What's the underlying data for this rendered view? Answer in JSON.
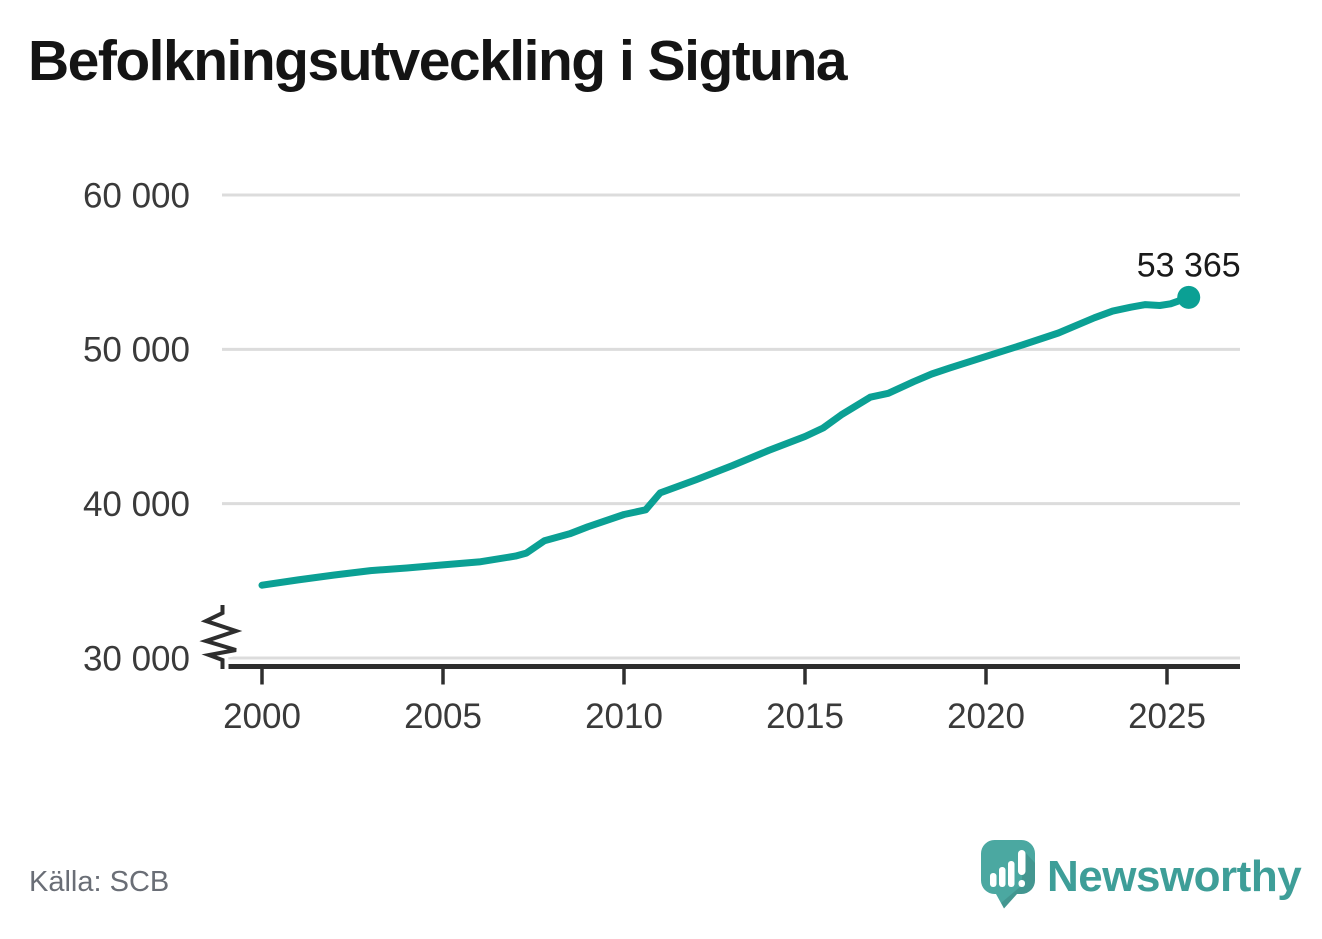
{
  "page": {
    "title": "Befolkningsutveckling i Sigtuna",
    "source": "Källa: SCB",
    "brand": {
      "name": "Newsworthy",
      "icon": "newsworthy-logo-icon"
    }
  },
  "colors": {
    "line": "#0ba094",
    "grid": "#dcdcdc",
    "axis": "#2e2e2e",
    "tick_text": "#3a3a3a",
    "title_text": "#141414",
    "end_label_text": "#1a1a1a",
    "source_text": "#6a6e76",
    "brand_teal": "#3e9e98",
    "logo_bubble_teal": "#4ba8a1",
    "background": "#ffffff"
  },
  "chart_data": {
    "type": "line",
    "title": "Befolkningsutveckling i Sigtuna",
    "xlabel": "",
    "ylabel": "",
    "grid": "horizontal",
    "legend": "none",
    "y_axis_break": true,
    "xlim": [
      1998.9,
      2026.9
    ],
    "ylim": [
      30000,
      60000
    ],
    "x_ticks": [
      {
        "value": 2000,
        "label": "2000"
      },
      {
        "value": 2005,
        "label": "2005"
      },
      {
        "value": 2010,
        "label": "2010"
      },
      {
        "value": 2015,
        "label": "2015"
      },
      {
        "value": 2020,
        "label": "2020"
      },
      {
        "value": 2025,
        "label": "2025"
      }
    ],
    "y_ticks": [
      {
        "value": 30000,
        "label": "30 000"
      },
      {
        "value": 40000,
        "label": "40 000"
      },
      {
        "value": 50000,
        "label": "50 000"
      },
      {
        "value": 60000,
        "label": "60 000"
      }
    ],
    "series": [
      {
        "color": "#0ba094",
        "points": [
          [
            2000,
            34720
          ],
          [
            2001,
            35060
          ],
          [
            2002,
            35380
          ],
          [
            2003,
            35660
          ],
          [
            2004,
            35830
          ],
          [
            2005,
            36030
          ],
          [
            2006,
            36230
          ],
          [
            2007,
            36600
          ],
          [
            2007.3,
            36800
          ],
          [
            2007.8,
            37600
          ],
          [
            2008.5,
            38050
          ],
          [
            2009,
            38500
          ],
          [
            2010,
            39300
          ],
          [
            2010.6,
            39600
          ],
          [
            2011,
            40700
          ],
          [
            2012,
            41560
          ],
          [
            2013,
            42470
          ],
          [
            2014,
            43450
          ],
          [
            2015,
            44350
          ],
          [
            2015.5,
            44900
          ],
          [
            2016,
            45750
          ],
          [
            2016.8,
            46900
          ],
          [
            2017.3,
            47150
          ],
          [
            2018,
            47900
          ],
          [
            2018.5,
            48400
          ],
          [
            2019,
            48800
          ],
          [
            2020,
            49540
          ],
          [
            2021,
            50280
          ],
          [
            2022,
            51060
          ],
          [
            2023,
            52050
          ],
          [
            2023.5,
            52480
          ],
          [
            2024,
            52730
          ],
          [
            2024.4,
            52900
          ],
          [
            2024.8,
            52840
          ],
          [
            2025.1,
            52950
          ],
          [
            2025.6,
            53365
          ]
        ]
      }
    ],
    "end_point": {
      "x": 2025.6,
      "y": 53365,
      "label": "53 365"
    }
  }
}
